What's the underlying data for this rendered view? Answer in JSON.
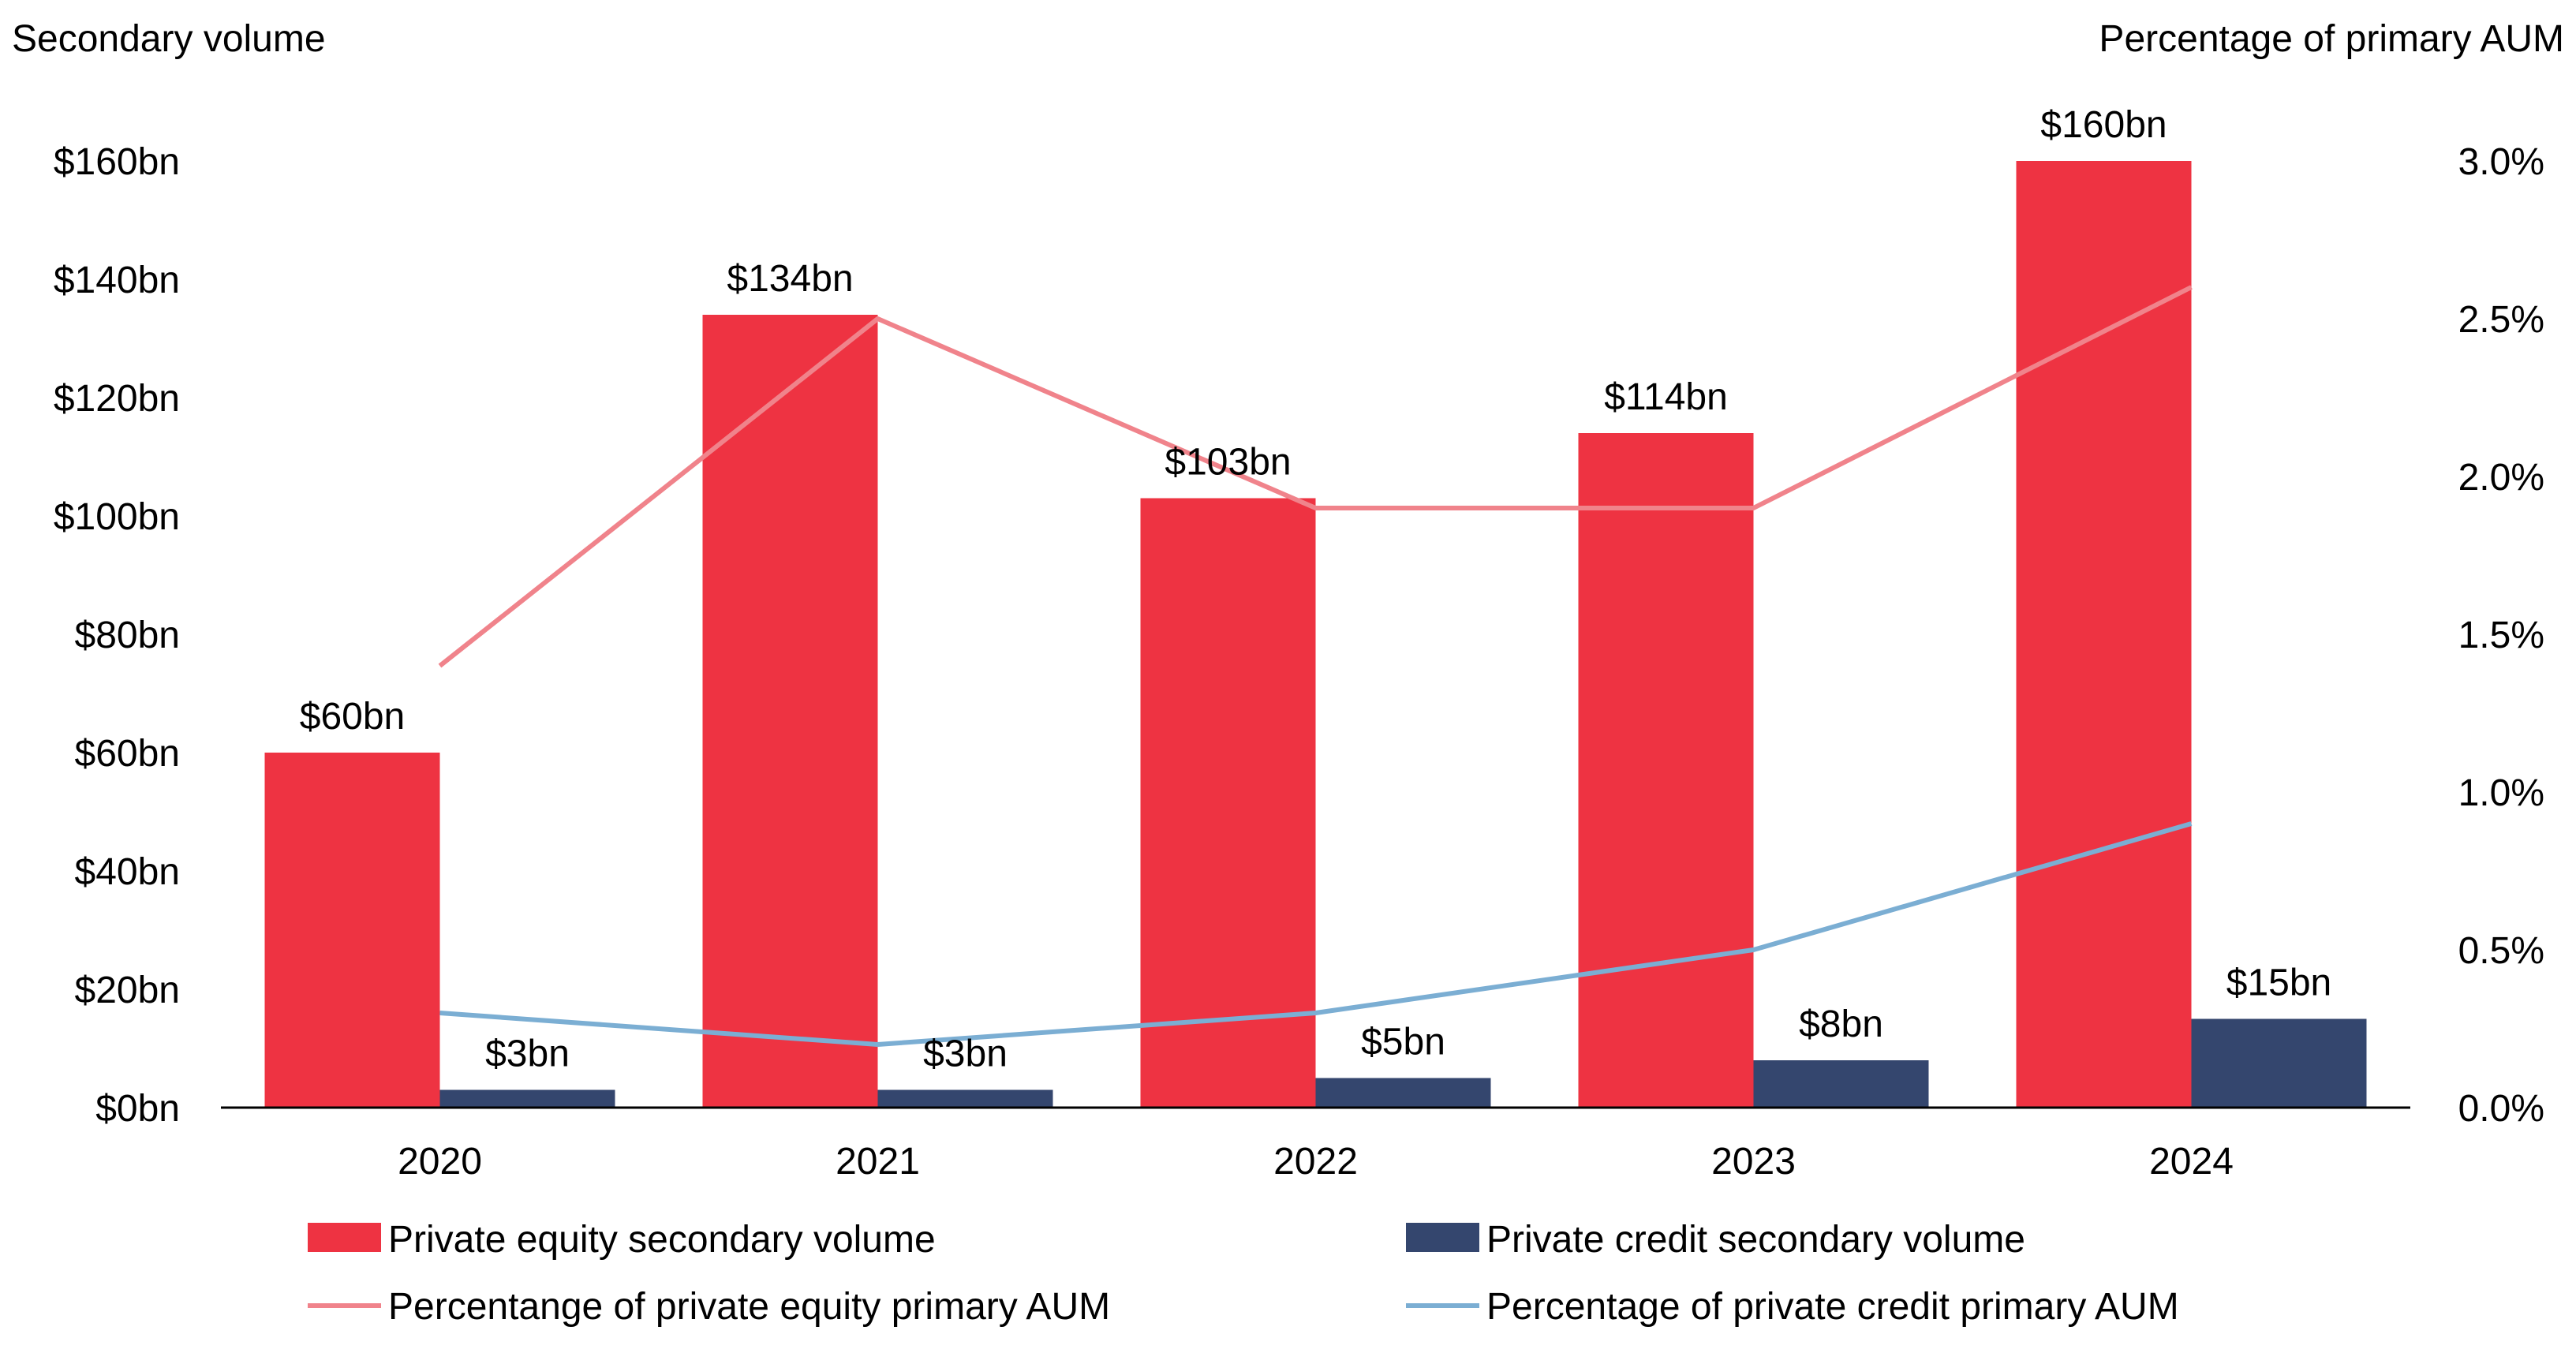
{
  "chart_data": {
    "type": "bar",
    "categories": [
      "2020",
      "2021",
      "2022",
      "2023",
      "2024"
    ],
    "left_axis": {
      "title": "Secondary volume",
      "ylim": [
        0,
        160
      ],
      "ticks": [
        0,
        20,
        40,
        60,
        80,
        100,
        120,
        140,
        160
      ],
      "tick_labels": [
        "$0bn",
        "$20bn",
        "$40bn",
        "$60bn",
        "$80bn",
        "$100bn",
        "$120bn",
        "$140bn",
        "$160bn"
      ]
    },
    "right_axis": {
      "title": "Percentage of primary AUM",
      "ylim": [
        0,
        3.0
      ],
      "ticks": [
        0,
        0.5,
        1.0,
        1.5,
        2.0,
        2.5,
        3.0
      ],
      "tick_labels": [
        "0.0%",
        "0.5%",
        "1.0%",
        "1.5%",
        "2.0%",
        "2.5%",
        "3.0%"
      ]
    },
    "bar_series": [
      {
        "name": "Private equity secondary volume",
        "color": "#EE3342",
        "values": [
          60,
          134,
          103,
          114,
          160
        ],
        "labels": [
          "$60bn",
          "$134bn",
          "$103bn",
          "$114bn",
          "$160bn"
        ]
      },
      {
        "name": "Private credit secondary volume",
        "color": "#34466E",
        "values": [
          3,
          3,
          5,
          8,
          15
        ],
        "labels": [
          "$3bn",
          "$3bn",
          "$5bn",
          "$8bn",
          "$15bn"
        ]
      }
    ],
    "line_series": [
      {
        "name": "Percentange of private equity primary AUM",
        "color": "#F0838B",
        "axis": "right",
        "values": [
          1.4,
          2.5,
          1.9,
          1.9,
          2.6
        ]
      },
      {
        "name": "Percentage of private credit primary AUM",
        "color": "#7BAED3",
        "axis": "right",
        "values": [
          0.3,
          0.2,
          0.3,
          0.5,
          0.9
        ]
      }
    ],
    "legend_position": "bottom",
    "grid": false
  }
}
